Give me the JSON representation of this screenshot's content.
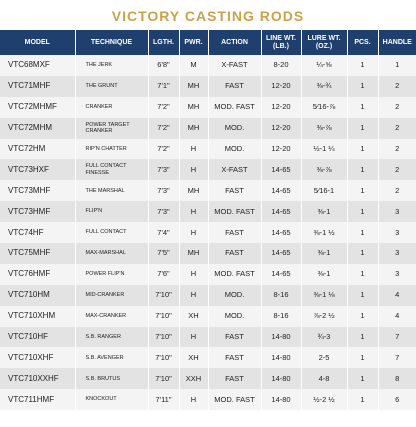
{
  "title": "VICTORY CASTING RODS",
  "table": {
    "headers": [
      "MODEL",
      "TECHNIQUE",
      "LGTH.",
      "PWR.",
      "ACTION",
      "LINE WT. (LB.)",
      "LURE WT. (OZ.)",
      "PCS.",
      "HANDLE"
    ],
    "rows": [
      [
        "VTC68MXF",
        "THE JERK",
        "6'8\"",
        "M",
        "X-FAST",
        "8-20",
        "¼-⅝",
        "1",
        "1"
      ],
      [
        "VTC71MHF",
        "THE GRUNT",
        "7'1\"",
        "MH",
        "FAST",
        "12-20",
        "⅜-¾",
        "1",
        "2"
      ],
      [
        "VTC72MHMF",
        "CRANKER",
        "7'2\"",
        "MH",
        "MOD. FAST",
        "12-20",
        "5⁄16-⅞",
        "1",
        "2"
      ],
      [
        "VTC72MHM",
        "POWER TARGET CRANKER",
        "7'2\"",
        "MH",
        "MOD.",
        "12-20",
        "⅜-⅞",
        "1",
        "2"
      ],
      [
        "VTC72HM",
        "RIP'N CHATTER",
        "7'2\"",
        "H",
        "MOD.",
        "12-20",
        "½-1 ¼",
        "1",
        "2"
      ],
      [
        "VTC73HXF",
        "FULL CONTACT FINESSE",
        "7'3\"",
        "H",
        "X-FAST",
        "14-65",
        "⅜-⅞",
        "1",
        "2"
      ],
      [
        "VTC73MHF",
        "THE MARSHAL",
        "7'3\"",
        "MH",
        "FAST",
        "14-65",
        "5⁄16-1",
        "1",
        "2"
      ],
      [
        "VTC73HMF",
        "FLIP'N",
        "7'3\"",
        "H",
        "MOD. FAST",
        "14-65",
        "⅜-1",
        "1",
        "3"
      ],
      [
        "VTC74HF",
        "FULL CONTACT",
        "7'4\"",
        "H",
        "FAST",
        "14-65",
        "⅜-1 ½",
        "1",
        "3"
      ],
      [
        "VTC75MHF",
        "MAX-MARSHAL",
        "7'5\"",
        "MH",
        "FAST",
        "14-65",
        "⅜-1",
        "1",
        "3"
      ],
      [
        "VTC76HMF",
        "POWER FLIP'N",
        "7'6\"",
        "H",
        "MOD. FAST",
        "14-65",
        "⅜-1",
        "1",
        "3"
      ],
      [
        "VTC710HM",
        "MID-CRANKER",
        "7'10\"",
        "H",
        "MOD.",
        "8-16",
        "⅜-1 ⅛",
        "1",
        "4"
      ],
      [
        "VTC710XHM",
        "MAX-CRANKER",
        "7'10\"",
        "XH",
        "MOD.",
        "8-16",
        "⅞-2 ½",
        "1",
        "4"
      ],
      [
        "VTC710HF",
        "S.B. RANGER",
        "7'10\"",
        "H",
        "FAST",
        "14-80",
        "¾-3",
        "1",
        "7"
      ],
      [
        "VTC710XHF",
        "S.B. AVENGER",
        "7'10\"",
        "XH",
        "FAST",
        "14-80",
        "2-5",
        "1",
        "7"
      ],
      [
        "VTC710XXHF",
        "S.B. BRUTUS",
        "7'10\"",
        "XXH",
        "FAST",
        "14-80",
        "4-8",
        "1",
        "8"
      ],
      [
        "VTC711HMF",
        "KNOCKOUT",
        "7'11\"",
        "H",
        "MOD. FAST",
        "14-80",
        "½-2 ½",
        "1",
        "6"
      ]
    ]
  }
}
